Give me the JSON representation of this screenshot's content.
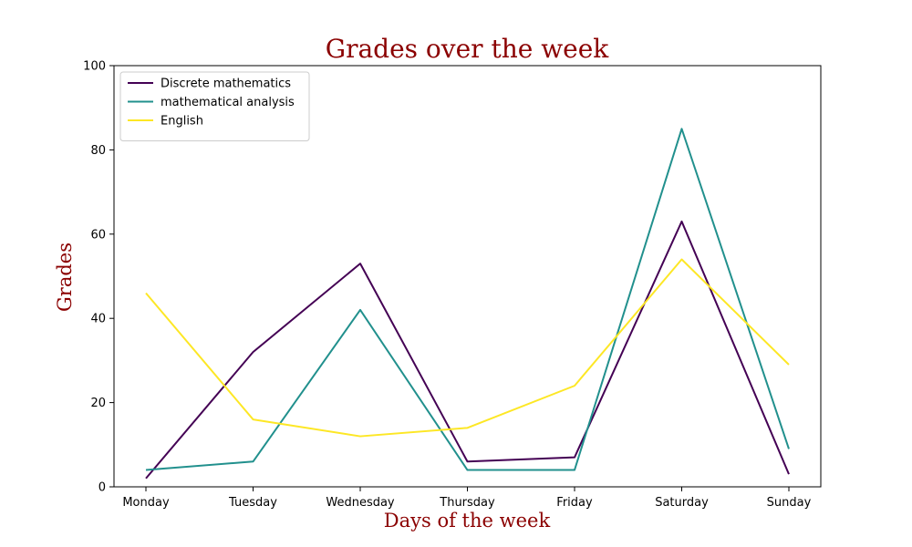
{
  "chart_data": {
    "type": "line",
    "title": "Grades over the week",
    "xlabel": "Days of the week",
    "ylabel": "Grades",
    "categories": [
      "Monday",
      "Tuesday",
      "Wednesday",
      "Thursday",
      "Friday",
      "Saturday",
      "Sunday"
    ],
    "ylim": [
      0,
      100
    ],
    "yticks": [
      0,
      20,
      40,
      60,
      80,
      100
    ],
    "grid": false,
    "legend_position": "top-left",
    "series": [
      {
        "name": "Discrete mathematics",
        "color": "#440154",
        "values": [
          2,
          32,
          53,
          6,
          7,
          63,
          3
        ]
      },
      {
        "name": "mathematical analysis",
        "color": "#21908d",
        "values": [
          4,
          6,
          42,
          4,
          4,
          85,
          9
        ]
      },
      {
        "name": "English",
        "color": "#fde725",
        "values": [
          46,
          16,
          12,
          14,
          24,
          54,
          29
        ]
      }
    ],
    "title_color": "#8b0000"
  }
}
